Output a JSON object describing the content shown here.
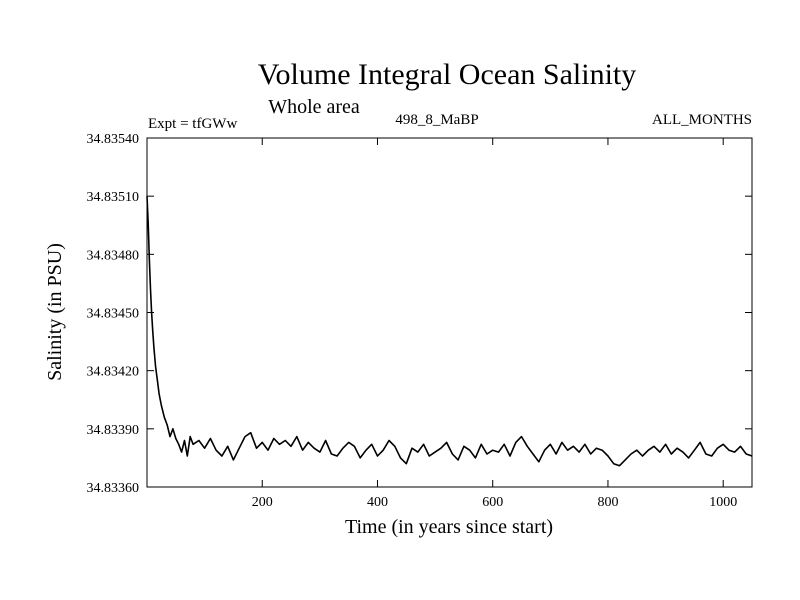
{
  "chart_data": {
    "type": "line",
    "title": "Volume Integral Ocean Salinity",
    "subtitle": "Whole area",
    "annotations": {
      "left": "Expt = tfGWw",
      "center": "498_8_MaBP",
      "right": "ALL_MONTHS"
    },
    "xlabel": "Time (in years since start)",
    "ylabel": "Salinity (in PSU)",
    "xlim": [
      0,
      1050
    ],
    "ylim": [
      34.8336,
      34.8354
    ],
    "x_ticks": [
      200,
      400,
      600,
      800,
      1000
    ],
    "x_tick_labels": [
      "200",
      "400",
      "600",
      "800",
      "1000"
    ],
    "y_ticks": [
      34.8336,
      34.8339,
      34.8342,
      34.8345,
      34.8348,
      34.8351,
      34.8354
    ],
    "y_tick_labels": [
      "34.83360",
      "34.83390",
      "34.83420",
      "34.83450",
      "34.83480",
      "34.83510",
      "34.83540"
    ],
    "grid": false,
    "series": [
      {
        "name": "Salinity",
        "x": [
          0,
          2,
          4,
          6,
          8,
          10,
          12,
          15,
          18,
          21,
          25,
          30,
          35,
          40,
          45,
          50,
          55,
          60,
          65,
          70,
          75,
          80,
          90,
          100,
          110,
          120,
          130,
          140,
          150,
          160,
          170,
          180,
          190,
          200,
          210,
          220,
          230,
          240,
          250,
          260,
          270,
          280,
          290,
          300,
          310,
          320,
          330,
          340,
          350,
          360,
          370,
          380,
          390,
          400,
          410,
          420,
          430,
          440,
          450,
          460,
          470,
          480,
          490,
          500,
          510,
          520,
          530,
          540,
          550,
          560,
          570,
          580,
          590,
          600,
          610,
          620,
          630,
          640,
          650,
          660,
          670,
          680,
          690,
          700,
          710,
          720,
          730,
          740,
          750,
          760,
          770,
          780,
          790,
          800,
          810,
          820,
          830,
          840,
          850,
          860,
          870,
          880,
          890,
          900,
          910,
          920,
          930,
          940,
          950,
          960,
          970,
          980,
          990,
          1000,
          1010,
          1020,
          1030,
          1040,
          1050
        ],
        "values": [
          34.8351,
          34.83496,
          34.83478,
          34.83462,
          34.8345,
          34.8344,
          34.83432,
          34.83422,
          34.83415,
          34.83408,
          34.83402,
          34.83396,
          34.83392,
          34.83386,
          34.8339,
          34.83385,
          34.83382,
          34.83378,
          34.83384,
          34.83376,
          34.83386,
          34.83382,
          34.83384,
          34.8338,
          34.83385,
          34.83379,
          34.83376,
          34.83381,
          34.83374,
          34.8338,
          34.83386,
          34.83388,
          34.8338,
          34.83383,
          34.83379,
          34.83385,
          34.83382,
          34.83384,
          34.83381,
          34.83386,
          34.83379,
          34.83383,
          34.8338,
          34.83378,
          34.83384,
          34.83377,
          34.83376,
          34.8338,
          34.83383,
          34.83381,
          34.83375,
          34.83379,
          34.83382,
          34.83376,
          34.83379,
          34.83384,
          34.83381,
          34.83375,
          34.83372,
          34.8338,
          34.83378,
          34.83382,
          34.83376,
          34.83378,
          34.8338,
          34.83383,
          34.83377,
          34.83374,
          34.83381,
          34.83379,
          34.83375,
          34.83382,
          34.83377,
          34.83379,
          34.83378,
          34.83382,
          34.83376,
          34.83383,
          34.83386,
          34.83381,
          34.83377,
          34.83373,
          34.83379,
          34.83382,
          34.83377,
          34.83383,
          34.83379,
          34.83381,
          34.83378,
          34.83382,
          34.83377,
          34.8338,
          34.83379,
          34.83376,
          34.83372,
          34.83371,
          34.83374,
          34.83377,
          34.83379,
          34.83376,
          34.83379,
          34.83381,
          34.83378,
          34.83382,
          34.83377,
          34.8338,
          34.83378,
          34.83375,
          34.83379,
          34.83383,
          34.83377,
          34.83376,
          34.8338,
          34.83382,
          34.83379,
          34.83378,
          34.83381,
          34.83377,
          34.83376
        ]
      }
    ]
  }
}
